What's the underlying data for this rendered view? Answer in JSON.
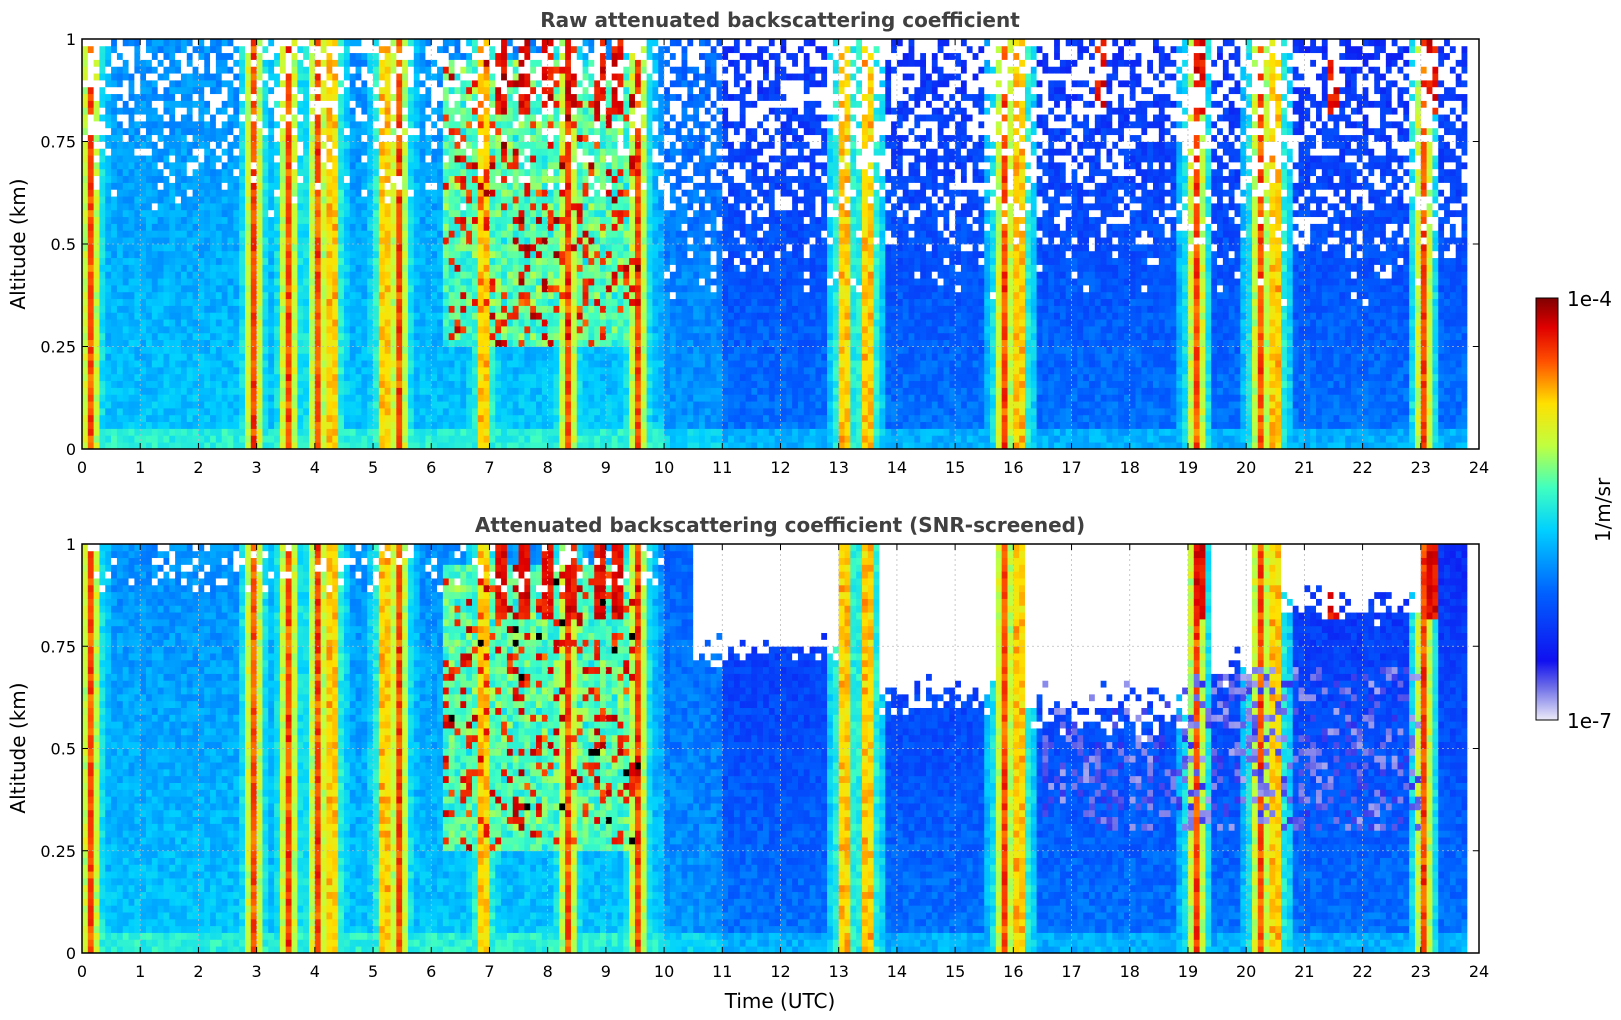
{
  "chart_data": [
    {
      "type": "heatmap",
      "title": "Raw attenuated backscattering coefficient",
      "xlabel": "",
      "ylabel": "Altitude (km)",
      "xlim": [
        0,
        24
      ],
      "ylim": [
        0,
        1
      ],
      "x_ticks": [
        0,
        1,
        2,
        3,
        4,
        5,
        6,
        7,
        8,
        9,
        10,
        11,
        12,
        13,
        14,
        15,
        16,
        17,
        18,
        19,
        20,
        21,
        22,
        23,
        24
      ],
      "y_ticks": [
        0,
        0.25,
        0.5,
        0.75,
        1
      ],
      "y_tick_labels": [
        "0",
        "0.25",
        "0.5",
        "0.75",
        "1"
      ],
      "grid": true,
      "screened": false
    },
    {
      "type": "heatmap",
      "title": "Attenuated backscattering coefficient (SNR-screened)",
      "xlabel": "Time (UTC)",
      "ylabel": "Altitude (km)",
      "xlim": [
        0,
        24
      ],
      "ylim": [
        0,
        1
      ],
      "x_ticks": [
        0,
        1,
        2,
        3,
        4,
        5,
        6,
        7,
        8,
        9,
        10,
        11,
        12,
        13,
        14,
        15,
        16,
        17,
        18,
        19,
        20,
        21,
        22,
        23,
        24
      ],
      "y_ticks": [
        0,
        0.25,
        0.5,
        0.75,
        1
      ],
      "y_tick_labels": [
        "0",
        "0.25",
        "0.5",
        "0.75",
        "1"
      ],
      "grid": true,
      "screened": true
    }
  ],
  "colorbar": {
    "label": "1/m/sr",
    "max_label": "1e-4",
    "min_label": "1e-7",
    "scale": "log",
    "colormap": "jet"
  },
  "features": {
    "intense_columns_utc": [
      0.15,
      2.95,
      3.55,
      4.05,
      4.3,
      5.2,
      5.45,
      6.9,
      8.35,
      9.55,
      13.1,
      13.5,
      15.85,
      16.1,
      19.15,
      20.25,
      20.5,
      23.05
    ],
    "high_altitude_streaks_utc": [
      7.2,
      7.6,
      8.0,
      8.4,
      8.9,
      9.2,
      17.5,
      19.2,
      21.5,
      23.2
    ]
  }
}
